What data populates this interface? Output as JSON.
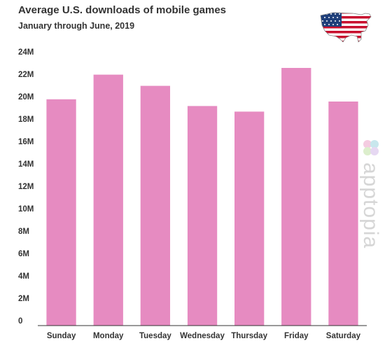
{
  "chart_data": {
    "type": "bar",
    "title": "Average U.S. downloads of mobile games",
    "subtitle": "January through June, 2019",
    "categories": [
      "Sunday",
      "Monday",
      "Tuesday",
      "Wednesday",
      "Thursday",
      "Friday",
      "Saturday"
    ],
    "values": [
      20.2,
      22.4,
      21.4,
      19.6,
      19.1,
      23.0,
      20.0
    ],
    "unit": "M",
    "ylim": [
      0,
      24
    ],
    "yticks": [
      "0",
      "2M",
      "4M",
      "6M",
      "8M",
      "10M",
      "12M",
      "14M",
      "16M",
      "18M",
      "20M",
      "22M",
      "24M"
    ],
    "bar_color": "#e68bc1",
    "grid": false,
    "legend": "none"
  },
  "brand": {
    "watermark": "apptopia",
    "flag_icon": "us-flag-map-icon",
    "logo_icon": "apptopia-logo-icon"
  }
}
